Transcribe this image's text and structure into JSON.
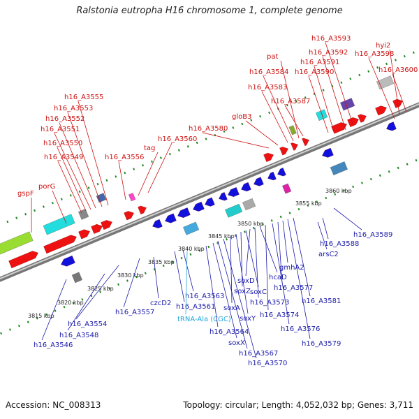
{
  "title": "Ralstonia eutropha H16 chromosome 1, complete genome",
  "footer": {
    "accession": "Accession: NC_008313",
    "summary": "Topology: circular; Length: 4,052,032 bp; Genes: 3,711"
  },
  "colors": {
    "top_label": "#cc1111",
    "bottom_label": "#1a1aaa",
    "trna_label": "#22a8dd",
    "axis": "#888888",
    "forward_gene": "#ee1111",
    "reverse_gene": "#1111dd",
    "dotted_guide": "#228822"
  },
  "scale_labels": [
    "3815 kbp",
    "3820 kbp",
    "3825 kbp",
    "3830 kbp",
    "3835 kbp",
    "3840 kbp",
    "3845 kbp",
    "3850 kbp",
    "3855 kbp",
    "3860 kbp"
  ],
  "top_labels": [
    "gspF",
    "porG",
    "h16_A3549",
    "h16_A3550",
    "h16_A3551",
    "h16_A3552",
    "h16_A3553",
    "h16_A3555",
    "h16_A3556",
    "tag",
    "h16_A3560",
    "h16_A3580",
    "gloB3",
    "h16_A3583",
    "h16_A3584",
    "pat",
    "h16_A3587",
    "h16_A3590",
    "h16_A3591",
    "h16_A3592",
    "h16_A3593",
    "h16_A3598",
    "hyi2",
    "h16_A3600"
  ],
  "bottom_labels": [
    "h16_A3546",
    "h16_A3548",
    "h16_A3554",
    "h16_A3557",
    "czcD2",
    "h16_A3561",
    "h16_A3563",
    "tRNA-Ala (CGC)",
    "h16_A3564",
    "soxX",
    "h16_A3567",
    "h16_A3570",
    "soxA",
    "soxY",
    "soxZ",
    "soxC",
    "soxD",
    "h16_A3573",
    "hcaD",
    "h16_A3574",
    "h16_A3576",
    "h16_A3577",
    "gmhA2",
    "h16_A3579",
    "h16_A3581",
    "arsC2",
    "h16_A3588",
    "h16_A3589"
  ]
}
